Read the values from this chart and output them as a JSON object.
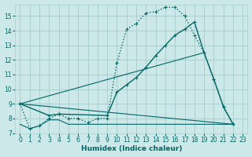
{
  "xlabel": "Humidex (Indice chaleur)",
  "bg_color": "#cce8e8",
  "grid_color": "#aacece",
  "line_color": "#006666",
  "xlim": [
    -0.5,
    23.5
  ],
  "ylim": [
    7.0,
    15.8
  ],
  "xticks": [
    0,
    1,
    2,
    3,
    4,
    5,
    6,
    7,
    8,
    9,
    10,
    11,
    12,
    13,
    14,
    15,
    16,
    17,
    18,
    19,
    20,
    21,
    22,
    23
  ],
  "yticks": [
    7,
    8,
    9,
    10,
    11,
    12,
    13,
    14,
    15
  ],
  "curve1_x": [
    0,
    1,
    2,
    3,
    4,
    5,
    6,
    7,
    8,
    9,
    10,
    11,
    12,
    13,
    14,
    15,
    16,
    17,
    18,
    19,
    20,
    21,
    22
  ],
  "curve1_y": [
    9.0,
    7.3,
    7.5,
    8.0,
    8.3,
    8.0,
    8.0,
    7.7,
    8.0,
    8.0,
    11.8,
    14.1,
    14.5,
    15.2,
    15.3,
    15.6,
    15.6,
    15.0,
    13.7,
    12.5,
    10.7,
    8.8,
    7.6
  ],
  "curve2_x": [
    0,
    3,
    4,
    9,
    10,
    11,
    12,
    13,
    14,
    15,
    16,
    17,
    18,
    19,
    20,
    21,
    22
  ],
  "curve2_y": [
    9.0,
    8.2,
    8.3,
    8.2,
    9.8,
    10.3,
    10.8,
    11.5,
    12.3,
    13.0,
    13.7,
    14.1,
    14.6,
    12.5,
    10.7,
    8.8,
    7.6
  ],
  "line3_x": [
    0,
    19
  ],
  "line3_y": [
    9.0,
    12.5
  ],
  "line4_x": [
    0,
    22
  ],
  "line4_y": [
    9.0,
    7.6
  ],
  "flat_x": [
    0,
    1,
    2,
    3,
    4,
    5,
    6,
    7,
    8,
    9,
    10,
    11,
    12,
    13,
    14,
    15,
    16,
    17,
    18,
    19,
    20,
    21,
    22
  ],
  "flat_y": [
    7.6,
    7.3,
    7.5,
    7.9,
    7.9,
    7.6,
    7.6,
    7.6,
    7.6,
    7.6,
    7.6,
    7.6,
    7.6,
    7.6,
    7.6,
    7.6,
    7.6,
    7.6,
    7.6,
    7.6,
    7.6,
    7.6,
    7.6
  ]
}
